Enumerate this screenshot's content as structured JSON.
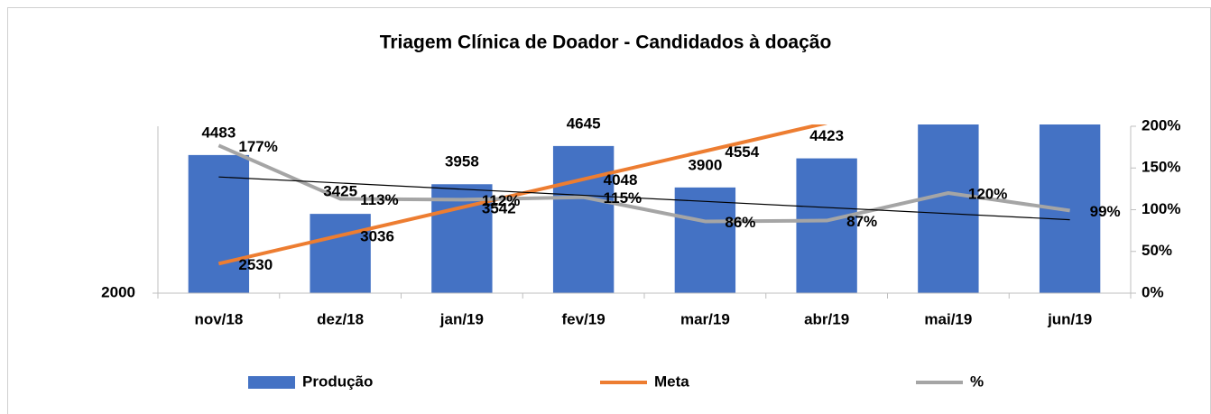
{
  "chart_data": {
    "type": "bar",
    "title": "Triagem Clínica de Doador - Candidados à doação",
    "categories": [
      "nov/18",
      "dez/18",
      "jan/19",
      "fev/19",
      "mar/19",
      "abr/19",
      "mai/19",
      "jun/19"
    ],
    "series": [
      {
        "name": "Produção",
        "type": "bar",
        "color": "#4472c4",
        "values": [
          4483,
          3425,
          3958,
          4645,
          3900,
          4423,
          5100,
          5100
        ],
        "value_labels": [
          "4483",
          "3425",
          "3958",
          "4645",
          "3900",
          "4423",
          null,
          null
        ]
      },
      {
        "name": "Meta",
        "type": "line",
        "color": "#ed7d31",
        "values": [
          2530,
          3036,
          3542,
          4048,
          4554,
          5060,
          null,
          null
        ],
        "value_labels": [
          "2530",
          "3036",
          "3542",
          "4048",
          "4554",
          null,
          null,
          null
        ]
      },
      {
        "name": "%",
        "type": "line",
        "axis": "y2",
        "color": "#a5a5a5",
        "trendline": true,
        "values": [
          177,
          113,
          112,
          115,
          86,
          87,
          120,
          99
        ],
        "value_labels": [
          "177%",
          "113%",
          "112%",
          "115%",
          "86%",
          "87%",
          "120%",
          "99%"
        ]
      }
    ],
    "ylim": [
      2000,
      5000
    ],
    "yticks": [
      2000
    ],
    "y2lim": [
      0,
      200
    ],
    "y2ticks": [
      {
        "value": 0,
        "label": "0%"
      },
      {
        "value": 50,
        "label": "50%"
      },
      {
        "value": 100,
        "label": "100%"
      },
      {
        "value": 150,
        "label": "150%"
      },
      {
        "value": 200,
        "label": "200%"
      }
    ],
    "grid": false,
    "legend": "bottom"
  }
}
